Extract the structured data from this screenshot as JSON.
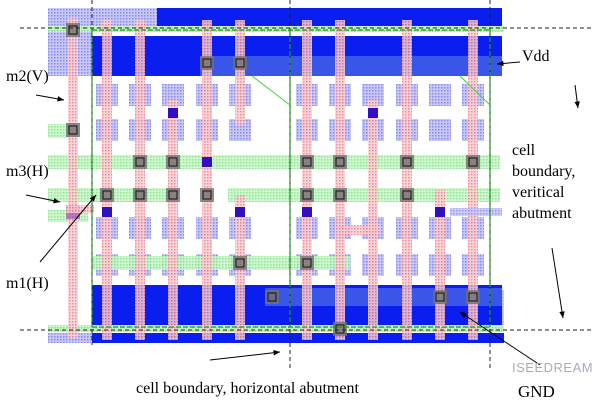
{
  "labels": {
    "vdd": "Vdd",
    "m2": "m2(V)",
    "m3": "m3(H)",
    "m1": "m1(H)",
    "vertical_boundary": [
      "cell",
      "boundary,",
      "veritical",
      "abutment"
    ],
    "horizontal_boundary": "cell boundary, horizontal abutment",
    "gnd": "GND"
  },
  "watermark": "ISEEDREAM",
  "colors": {
    "metal1_rail": "#0a1ef0",
    "metal2": "#f4a0a8",
    "metal3": "#a8f0a8",
    "diffusion": "#b8b8f4",
    "contact": "#707070",
    "boundary_green": "#1a9a1a"
  }
}
